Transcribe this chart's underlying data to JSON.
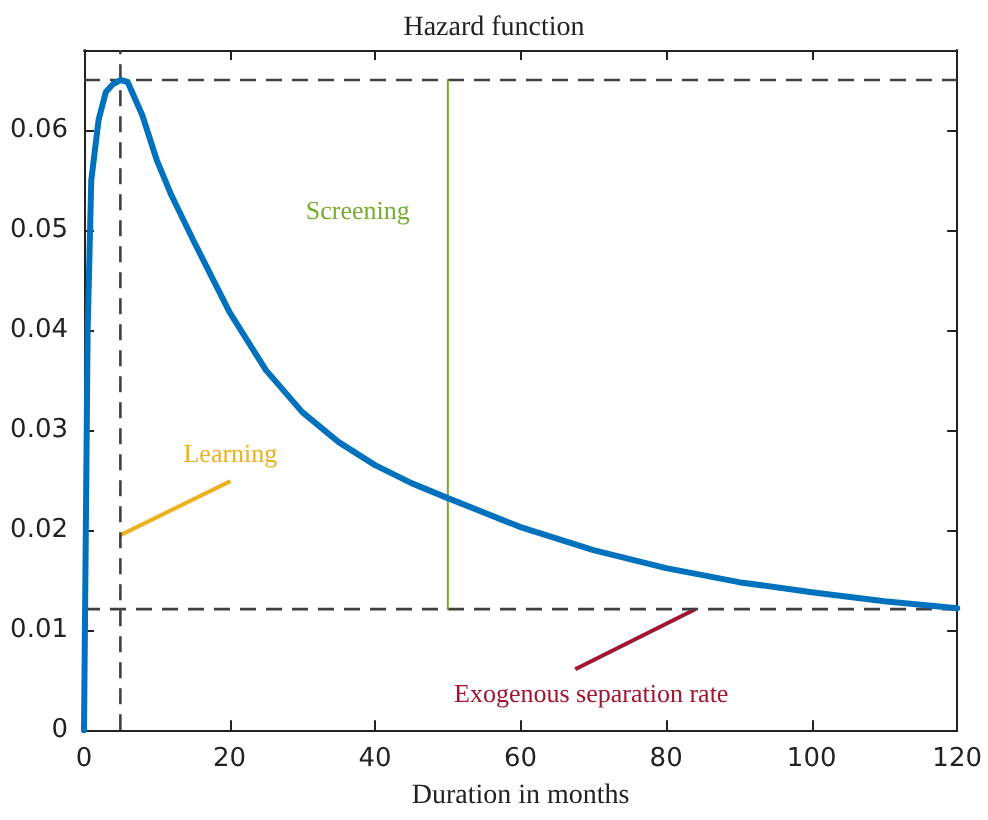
{
  "chart_data": {
    "type": "line",
    "title": "Hazard function",
    "xlabel": "Duration in months",
    "x": [
      0,
      0.5,
      1,
      2,
      3,
      4,
      5,
      6,
      8,
      10,
      12,
      15,
      20,
      25,
      30,
      35,
      40,
      45,
      50,
      60,
      70,
      80,
      90,
      100,
      110,
      120
    ],
    "series": [
      {
        "color": "#0072bd",
        "values": [
          0,
          0.04,
          0.055,
          0.061,
          0.0638,
          0.0646,
          0.065,
          0.0648,
          0.0615,
          0.057,
          0.0535,
          0.049,
          0.0418,
          0.036,
          0.0318,
          0.0288,
          0.0265,
          0.0247,
          0.0232,
          0.0203,
          0.018,
          0.0162,
          0.0148,
          0.0138,
          0.0129,
          0.0122
        ]
      },
      {
        "color": "#77ac30",
        "x": [
          50,
          50
        ],
        "values": [
          0.0121,
          0.065
        ]
      }
    ],
    "xlim": [
      0,
      120
    ],
    "xticks": [
      0,
      20,
      40,
      60,
      80,
      100,
      120
    ],
    "ylim": [
      0,
      0.068
    ],
    "yticks": [
      0,
      0.01,
      0.02,
      0.03,
      0.04,
      0.05,
      0.06
    ],
    "ref_lines": [
      {
        "axis": "y",
        "value": 0.065,
        "line_style": "dashed",
        "color": "#404040"
      },
      {
        "axis": "y",
        "value": 0.0121,
        "line_style": "dashed",
        "color": "#404040"
      },
      {
        "axis": "x",
        "value": 5,
        "line_style": "dashed",
        "color": "#404040"
      }
    ],
    "annotations": [
      {
        "text": "Screening",
        "x": 50,
        "y": 0.052
      },
      {
        "text": "Learning",
        "x": 5,
        "y": 0.0195
      },
      {
        "text": "Exogenous separation rate",
        "x": 84,
        "y": 0.0121
      }
    ],
    "grid": false,
    "marker": "none",
    "line_style": "solid"
  }
}
